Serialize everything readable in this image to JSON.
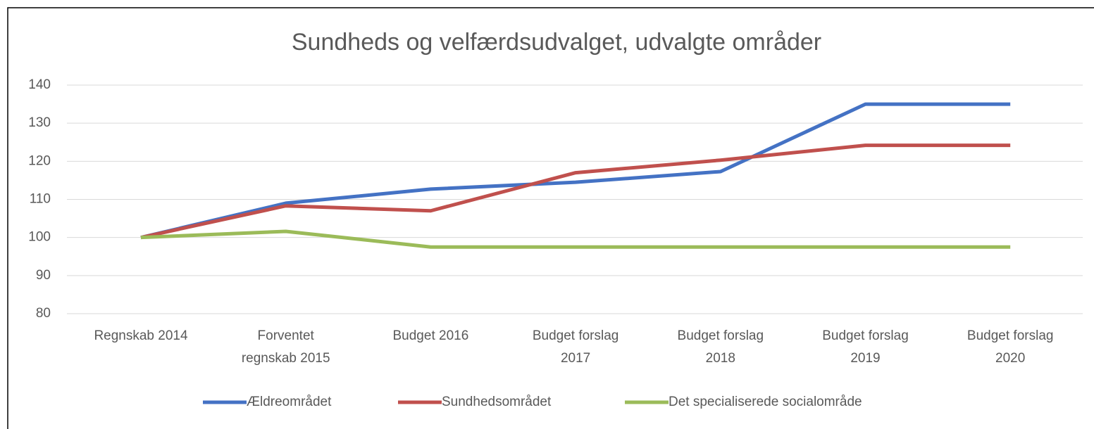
{
  "chart_data": {
    "type": "line",
    "title": "Sundheds og velfærdsudvalget, udvalgte områder",
    "categories": [
      "Regnskab 2014",
      "Forventet regnskab 2015",
      "Budget 2016",
      "Budget forslag 2017",
      "Budget forslag 2018",
      "Budget forslag 2019",
      "Budget forslag 2020"
    ],
    "series": [
      {
        "name": "Ældreområdet",
        "color": "#4472c4",
        "values": [
          100,
          109,
          112.7,
          114.5,
          117.3,
          135,
          135
        ]
      },
      {
        "name": "Sundhedsområdet",
        "color": "#c0504d",
        "values": [
          100,
          108.3,
          107,
          117,
          120.3,
          124.2,
          124.2
        ]
      },
      {
        "name": "Det specialiserede socialområde",
        "color": "#9bbb59",
        "values": [
          100,
          101.6,
          97.5,
          97.5,
          97.5,
          97.5,
          97.5
        ]
      }
    ],
    "ylim": [
      80,
      140
    ],
    "yticks": [
      80,
      90,
      100,
      110,
      120,
      130,
      140
    ],
    "grid": true,
    "legend": "bottom"
  }
}
